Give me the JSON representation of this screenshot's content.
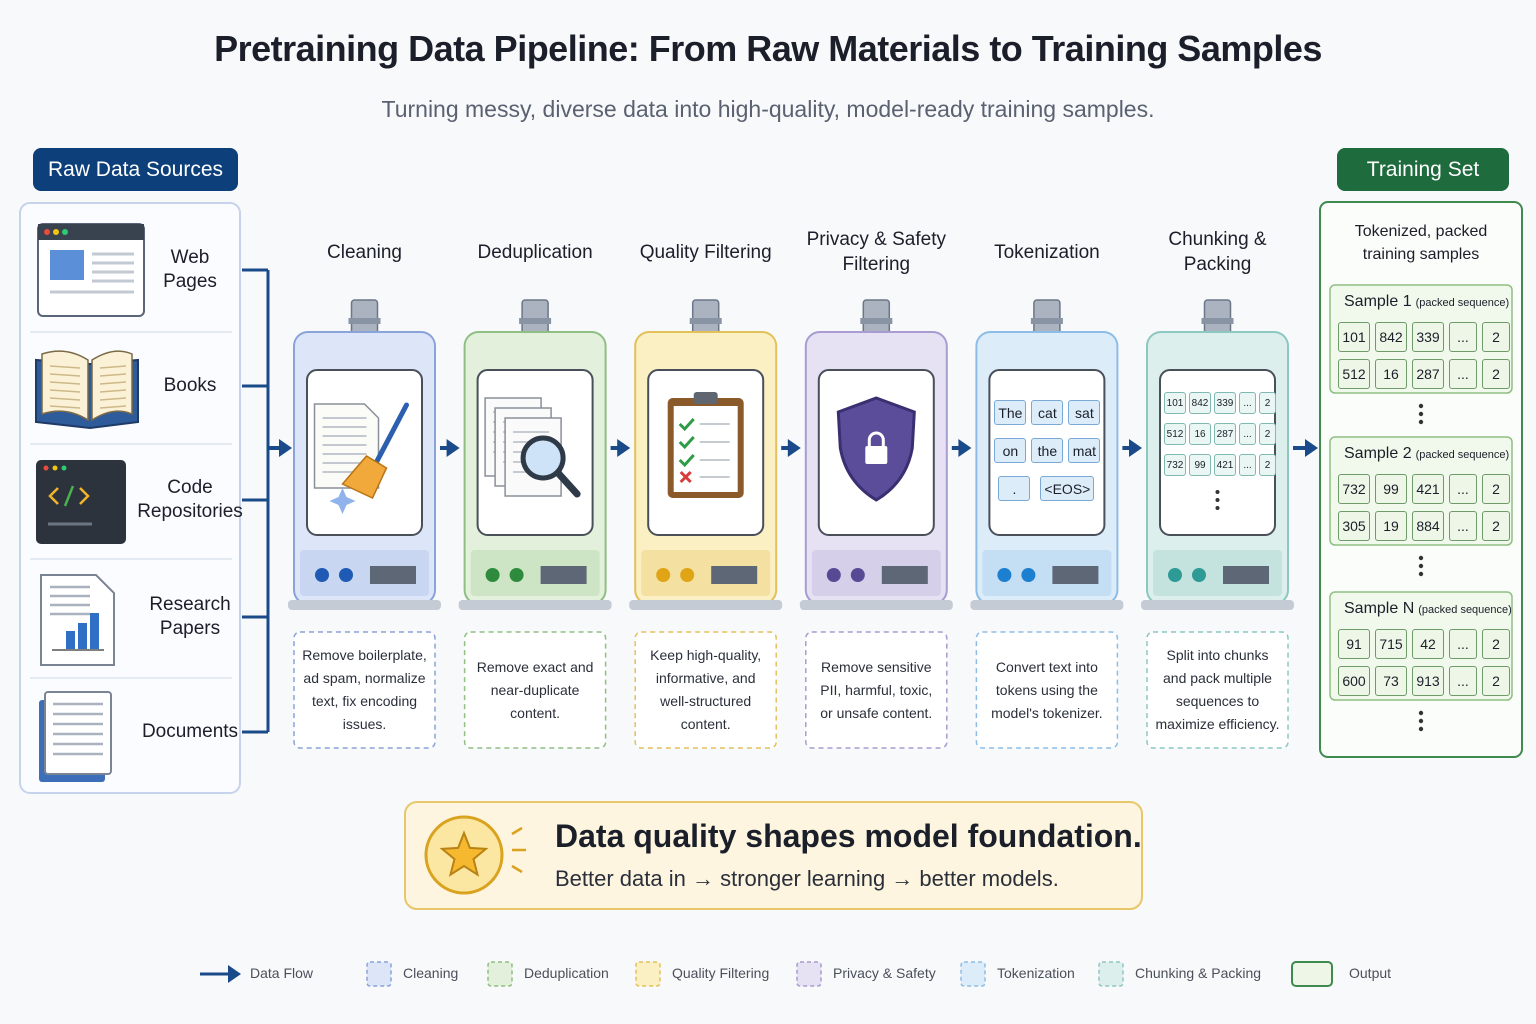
{
  "title": "Pretraining Data Pipeline: From Raw Materials to Training Samples",
  "subtitle": "Turning messy, diverse data into high-quality, model-ready training samples.",
  "sources": {
    "label": "Raw Data Sources",
    "items": [
      "Web Pages",
      "Books",
      "Code Repositories",
      "Research Papers",
      "Documents"
    ]
  },
  "stages": [
    {
      "name": "Cleaning",
      "description": "Remove boilerplate, ad spam, normalize text, fix encoding issues."
    },
    {
      "name": "Deduplication",
      "description": "Remove exact and near-duplicate content."
    },
    {
      "name": "Quality Filtering",
      "description": "Keep high-quality, informative, and well-structured content."
    },
    {
      "name": "Privacy & Safety Filtering",
      "description": "Remove sensitive PII, harmful, toxic, or unsafe content."
    },
    {
      "name": "Tokenization",
      "description": "Convert text into tokens using the model's tokenizer."
    },
    {
      "name": "Chunking & Packing",
      "description": "Split into chunks and pack multiple sequences to maximize efficiency."
    }
  ],
  "tokens": [
    [
      "The",
      "cat",
      "sat"
    ],
    [
      "on",
      "the",
      "mat"
    ],
    [
      ".",
      "<EOS>"
    ]
  ],
  "chunks": [
    [
      101,
      842,
      339,
      "...",
      2
    ],
    [
      512,
      16,
      287,
      "...",
      2
    ],
    [
      732,
      99,
      421,
      "...",
      2
    ]
  ],
  "output": {
    "label": "Training Set",
    "heading": "Tokenized, packed training samples",
    "samples": [
      {
        "name": "Sample 1",
        "note": "(packed sequence)",
        "rows": [
          [
            101,
            842,
            339,
            "...",
            2
          ],
          [
            512,
            16,
            287,
            "...",
            2
          ]
        ]
      },
      {
        "name": "Sample 2",
        "note": "(packed sequence)",
        "rows": [
          [
            732,
            99,
            421,
            "...",
            2
          ],
          [
            305,
            19,
            884,
            "...",
            2
          ]
        ]
      },
      {
        "name": "Sample N",
        "note": "(packed sequence)",
        "rows": [
          [
            91,
            715,
            42,
            "...",
            2
          ],
          [
            600,
            73,
            913,
            "...",
            2
          ]
        ]
      }
    ]
  },
  "callout": {
    "title": "Data quality shapes model foundation.",
    "text": "Better data in → stronger learning → better models."
  },
  "legend": [
    "Data Flow",
    "Cleaning",
    "Deduplication",
    "Quality Filtering",
    "Privacy & Safety",
    "Tokenization",
    "Chunking & Packing",
    "Output"
  ]
}
